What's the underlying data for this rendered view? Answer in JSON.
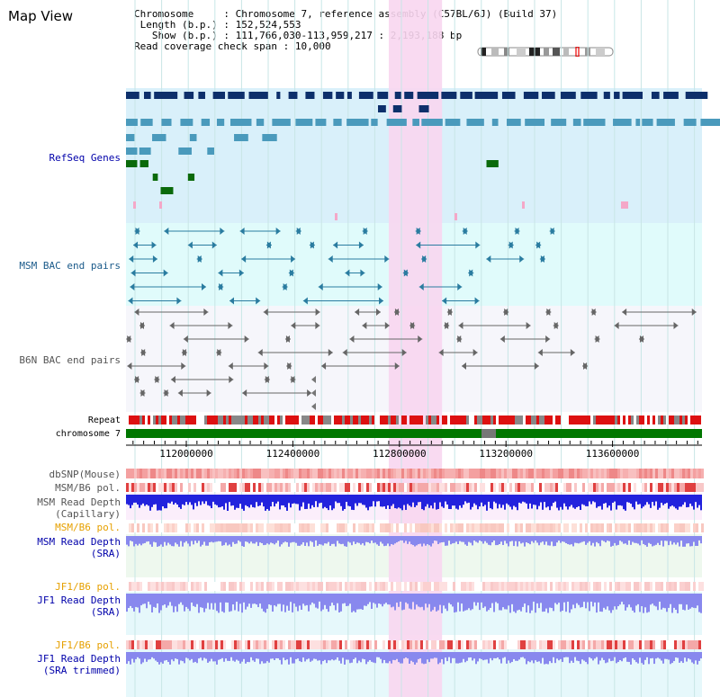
{
  "page": {
    "title": "Map View"
  },
  "info": {
    "chromosome_label": "Chromosome",
    "chromosome_value": "Chromosome 7, reference assembly (C57BL/6J) (Build 37)",
    "length_label": "Length (b.p.)",
    "length_value": "152,524,553",
    "show_label": "Show (b.p.)",
    "show_value": "111,766,030-113,959,217 : 2,193,188 bp",
    "coverage_label": "Read coverage check span",
    "coverage_value": "10,000"
  },
  "tracks": {
    "refseq": "RefSeq Genes",
    "msm_bac": "MSM BAC end pairs",
    "b6n_bac": "B6N BAC end pairs",
    "repeat": "Repeat",
    "chromosome": "chromosome 7",
    "dbsnp": "dbSNP(Mouse)",
    "msm_b6_pol_1": "MSM/B6 pol.",
    "msm_read_depth_cap_1": "MSM Read Depth",
    "msm_read_depth_cap_2": "(Capillary)",
    "msm_b6_pol_2": "MSM/B6 pol.",
    "msm_read_depth_sra_1": "MSM Read Depth",
    "msm_read_depth_sra_2": "(SRA)",
    "jf1_b6_pol_1": "JF1/B6 pol.",
    "jf1_read_depth_sra_1": "JF1 Read Depth",
    "jf1_read_depth_sra_2": "(SRA)",
    "jf1_b6_pol_2": "JF1/B6 pol.",
    "jf1_read_depth_trim_1": "JF1 Read Depth",
    "jf1_read_depth_trim_2": "(SRA trimmed)"
  },
  "ruler": {
    "ticks": [
      {
        "label": "112000000",
        "pos": 112000000
      },
      {
        "label": "112400000",
        "pos": 112400000
      },
      {
        "label": "112800000",
        "pos": 112800000
      },
      {
        "label": "113200000",
        "pos": 113200000
      },
      {
        "label": "113600000",
        "pos": 113600000
      }
    ]
  },
  "highlight_region": {
    "start": 112760000,
    "end": 112960000
  },
  "colors": {
    "refseq_bg": "#d9f0fa",
    "bac_bg": "#e0fbfb",
    "highlight": "#f8d6f0",
    "navy": "#0d2f6b",
    "steel": "#4a9abc",
    "green": "#0a6a0a",
    "pink": "#f4a8c8",
    "repeat_red": "#dd1111",
    "chrom_green": "#007700",
    "snp_pink": "#f4b8b8",
    "depth_blue": "#2222dd",
    "depth_light": "#8888ee"
  }
}
